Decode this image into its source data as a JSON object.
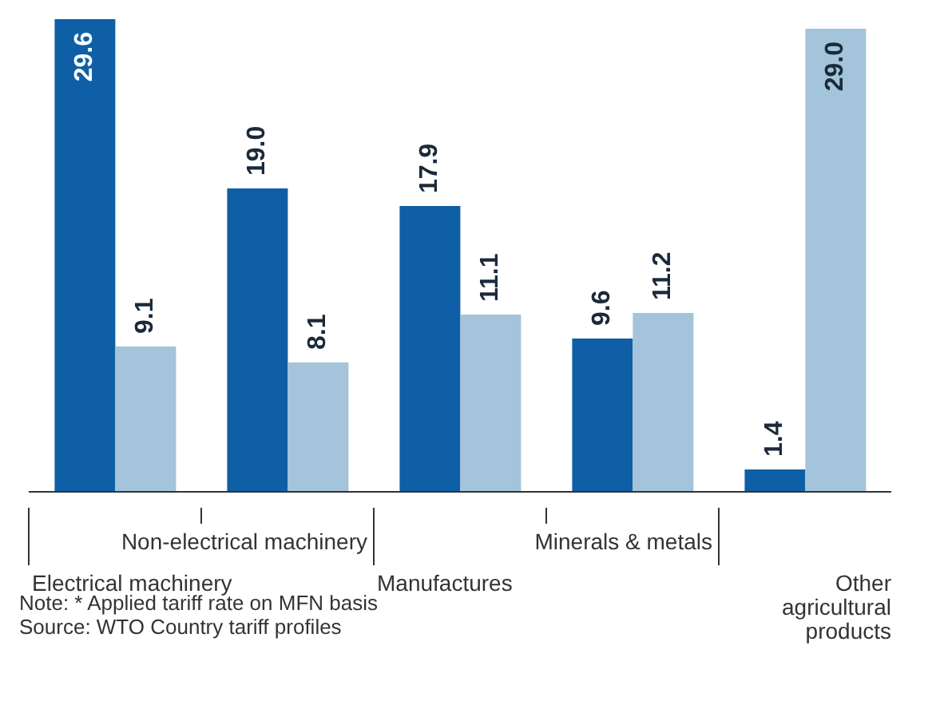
{
  "chart_data": {
    "type": "bar",
    "categories": [
      "Electrical machinery",
      "Non-electrical machinery",
      "Manufactures",
      "Minerals & metals",
      "Other agricultural products"
    ],
    "series": [
      {
        "color": "#0f5fa6",
        "values": [
          29.6,
          19.0,
          17.9,
          9.6,
          1.4
        ],
        "value_labels": [
          "29.6",
          "19.0",
          "17.9",
          "9.6",
          "1.4"
        ]
      },
      {
        "color": "#a3c4da",
        "values": [
          9.1,
          8.1,
          11.1,
          11.2,
          29.0
        ],
        "value_labels": [
          "9.1",
          "8.1",
          "11.1",
          "11.2",
          "29.0"
        ]
      }
    ],
    "grid": false,
    "legend": false,
    "annotations": [
      "Note: * Applied tariff rate on MFN basis",
      "Source: WTO Country tariff profiles"
    ]
  }
}
